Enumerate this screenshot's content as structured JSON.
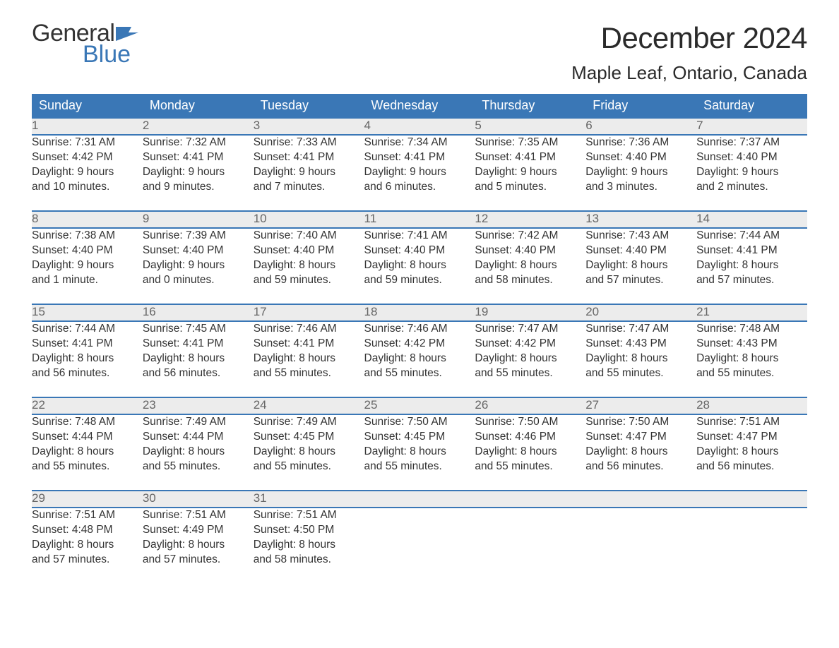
{
  "logo": {
    "word1": "General",
    "word2": "Blue",
    "flag_color": "#3a77b6"
  },
  "title": "December 2024",
  "location": "Maple Leaf, Ontario, Canada",
  "weekday_labels": [
    "Sunday",
    "Monday",
    "Tuesday",
    "Wednesday",
    "Thursday",
    "Friday",
    "Saturday"
  ],
  "colors": {
    "header_bg": "#3a77b6",
    "header_text": "#ffffff",
    "daynum_bg": "#ececec",
    "daynum_text": "#666666",
    "row_border": "#3a77b6",
    "body_text": "#333333",
    "brand_blue": "#3a77b6",
    "background": "#ffffff"
  },
  "typography": {
    "title_fontsize": 42,
    "location_fontsize": 26,
    "weekday_fontsize": 18,
    "daynum_fontsize": 17,
    "cell_fontsize": 15.5,
    "logo_fontsize": 34
  },
  "weeks": [
    [
      {
        "num": "1",
        "sunrise": "Sunrise: 7:31 AM",
        "sunset": "Sunset: 4:42 PM",
        "daylight1": "Daylight: 9 hours",
        "daylight2": "and 10 minutes."
      },
      {
        "num": "2",
        "sunrise": "Sunrise: 7:32 AM",
        "sunset": "Sunset: 4:41 PM",
        "daylight1": "Daylight: 9 hours",
        "daylight2": "and 9 minutes."
      },
      {
        "num": "3",
        "sunrise": "Sunrise: 7:33 AM",
        "sunset": "Sunset: 4:41 PM",
        "daylight1": "Daylight: 9 hours",
        "daylight2": "and 7 minutes."
      },
      {
        "num": "4",
        "sunrise": "Sunrise: 7:34 AM",
        "sunset": "Sunset: 4:41 PM",
        "daylight1": "Daylight: 9 hours",
        "daylight2": "and 6 minutes."
      },
      {
        "num": "5",
        "sunrise": "Sunrise: 7:35 AM",
        "sunset": "Sunset: 4:41 PM",
        "daylight1": "Daylight: 9 hours",
        "daylight2": "and 5 minutes."
      },
      {
        "num": "6",
        "sunrise": "Sunrise: 7:36 AM",
        "sunset": "Sunset: 4:40 PM",
        "daylight1": "Daylight: 9 hours",
        "daylight2": "and 3 minutes."
      },
      {
        "num": "7",
        "sunrise": "Sunrise: 7:37 AM",
        "sunset": "Sunset: 4:40 PM",
        "daylight1": "Daylight: 9 hours",
        "daylight2": "and 2 minutes."
      }
    ],
    [
      {
        "num": "8",
        "sunrise": "Sunrise: 7:38 AM",
        "sunset": "Sunset: 4:40 PM",
        "daylight1": "Daylight: 9 hours",
        "daylight2": "and 1 minute."
      },
      {
        "num": "9",
        "sunrise": "Sunrise: 7:39 AM",
        "sunset": "Sunset: 4:40 PM",
        "daylight1": "Daylight: 9 hours",
        "daylight2": "and 0 minutes."
      },
      {
        "num": "10",
        "sunrise": "Sunrise: 7:40 AM",
        "sunset": "Sunset: 4:40 PM",
        "daylight1": "Daylight: 8 hours",
        "daylight2": "and 59 minutes."
      },
      {
        "num": "11",
        "sunrise": "Sunrise: 7:41 AM",
        "sunset": "Sunset: 4:40 PM",
        "daylight1": "Daylight: 8 hours",
        "daylight2": "and 59 minutes."
      },
      {
        "num": "12",
        "sunrise": "Sunrise: 7:42 AM",
        "sunset": "Sunset: 4:40 PM",
        "daylight1": "Daylight: 8 hours",
        "daylight2": "and 58 minutes."
      },
      {
        "num": "13",
        "sunrise": "Sunrise: 7:43 AM",
        "sunset": "Sunset: 4:40 PM",
        "daylight1": "Daylight: 8 hours",
        "daylight2": "and 57 minutes."
      },
      {
        "num": "14",
        "sunrise": "Sunrise: 7:44 AM",
        "sunset": "Sunset: 4:41 PM",
        "daylight1": "Daylight: 8 hours",
        "daylight2": "and 57 minutes."
      }
    ],
    [
      {
        "num": "15",
        "sunrise": "Sunrise: 7:44 AM",
        "sunset": "Sunset: 4:41 PM",
        "daylight1": "Daylight: 8 hours",
        "daylight2": "and 56 minutes."
      },
      {
        "num": "16",
        "sunrise": "Sunrise: 7:45 AM",
        "sunset": "Sunset: 4:41 PM",
        "daylight1": "Daylight: 8 hours",
        "daylight2": "and 56 minutes."
      },
      {
        "num": "17",
        "sunrise": "Sunrise: 7:46 AM",
        "sunset": "Sunset: 4:41 PM",
        "daylight1": "Daylight: 8 hours",
        "daylight2": "and 55 minutes."
      },
      {
        "num": "18",
        "sunrise": "Sunrise: 7:46 AM",
        "sunset": "Sunset: 4:42 PM",
        "daylight1": "Daylight: 8 hours",
        "daylight2": "and 55 minutes."
      },
      {
        "num": "19",
        "sunrise": "Sunrise: 7:47 AM",
        "sunset": "Sunset: 4:42 PM",
        "daylight1": "Daylight: 8 hours",
        "daylight2": "and 55 minutes."
      },
      {
        "num": "20",
        "sunrise": "Sunrise: 7:47 AM",
        "sunset": "Sunset: 4:43 PM",
        "daylight1": "Daylight: 8 hours",
        "daylight2": "and 55 minutes."
      },
      {
        "num": "21",
        "sunrise": "Sunrise: 7:48 AM",
        "sunset": "Sunset: 4:43 PM",
        "daylight1": "Daylight: 8 hours",
        "daylight2": "and 55 minutes."
      }
    ],
    [
      {
        "num": "22",
        "sunrise": "Sunrise: 7:48 AM",
        "sunset": "Sunset: 4:44 PM",
        "daylight1": "Daylight: 8 hours",
        "daylight2": "and 55 minutes."
      },
      {
        "num": "23",
        "sunrise": "Sunrise: 7:49 AM",
        "sunset": "Sunset: 4:44 PM",
        "daylight1": "Daylight: 8 hours",
        "daylight2": "and 55 minutes."
      },
      {
        "num": "24",
        "sunrise": "Sunrise: 7:49 AM",
        "sunset": "Sunset: 4:45 PM",
        "daylight1": "Daylight: 8 hours",
        "daylight2": "and 55 minutes."
      },
      {
        "num": "25",
        "sunrise": "Sunrise: 7:50 AM",
        "sunset": "Sunset: 4:45 PM",
        "daylight1": "Daylight: 8 hours",
        "daylight2": "and 55 minutes."
      },
      {
        "num": "26",
        "sunrise": "Sunrise: 7:50 AM",
        "sunset": "Sunset: 4:46 PM",
        "daylight1": "Daylight: 8 hours",
        "daylight2": "and 55 minutes."
      },
      {
        "num": "27",
        "sunrise": "Sunrise: 7:50 AM",
        "sunset": "Sunset: 4:47 PM",
        "daylight1": "Daylight: 8 hours",
        "daylight2": "and 56 minutes."
      },
      {
        "num": "28",
        "sunrise": "Sunrise: 7:51 AM",
        "sunset": "Sunset: 4:47 PM",
        "daylight1": "Daylight: 8 hours",
        "daylight2": "and 56 minutes."
      }
    ],
    [
      {
        "num": "29",
        "sunrise": "Sunrise: 7:51 AM",
        "sunset": "Sunset: 4:48 PM",
        "daylight1": "Daylight: 8 hours",
        "daylight2": "and 57 minutes."
      },
      {
        "num": "30",
        "sunrise": "Sunrise: 7:51 AM",
        "sunset": "Sunset: 4:49 PM",
        "daylight1": "Daylight: 8 hours",
        "daylight2": "and 57 minutes."
      },
      {
        "num": "31",
        "sunrise": "Sunrise: 7:51 AM",
        "sunset": "Sunset: 4:50 PM",
        "daylight1": "Daylight: 8 hours",
        "daylight2": "and 58 minutes."
      },
      null,
      null,
      null,
      null
    ]
  ]
}
